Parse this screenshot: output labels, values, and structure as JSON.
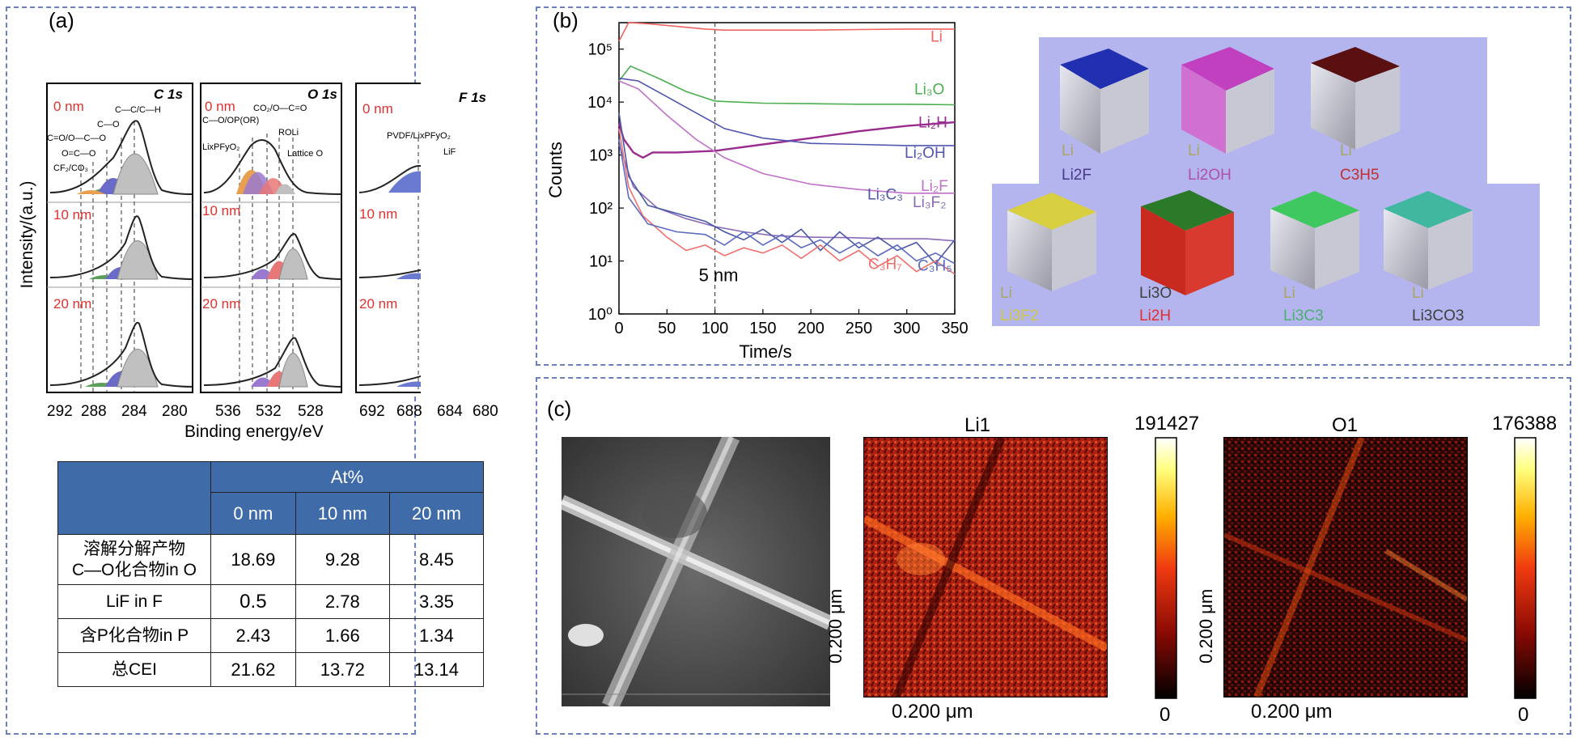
{
  "panel_a": {
    "label": "(a)",
    "y_axis_label": "Intensity/(a.u.)",
    "x_axis_label": "Binding energy/eV",
    "depth_labels": [
      "0 nm",
      "10 nm",
      "20 nm"
    ],
    "c1s": {
      "title": "C 1s",
      "ticks": [
        "292",
        "288",
        "284",
        "280"
      ],
      "annotations": [
        "C—C/C—H",
        "C—O",
        "C=O/O—C—O",
        "O=C—O",
        "CF₂/CO₃"
      ]
    },
    "o1s": {
      "title": "O 1s",
      "ticks": [
        "536",
        "532",
        "528"
      ],
      "annotations": [
        "CO₂/O—C=O",
        "C—O/OP(OR)",
        "ROLi",
        "LixPFyO₂",
        "Lattice O"
      ]
    },
    "f1s": {
      "title": "F 1s",
      "ticks": [
        "692",
        "688",
        "684",
        "680"
      ],
      "annotations": [
        "PVDF/LixPFyO₂",
        "LiF"
      ]
    },
    "table": {
      "header_group": "At%",
      "columns": [
        "0 nm",
        "10 nm",
        "20 nm"
      ],
      "rows": [
        {
          "label_line1": "溶解分解产物",
          "label_line2": "C—O化合物in O",
          "values": [
            "18.69",
            "9.28",
            "8.45"
          ]
        },
        {
          "label_line1": "LiF in F",
          "label_line2": "",
          "values": [
            "0.5",
            "2.78",
            "3.35"
          ]
        },
        {
          "label_line1": "含P化合物in P",
          "label_line2": "",
          "values": [
            "2.43",
            "1.66",
            "1.34"
          ]
        },
        {
          "label_line1": "总CEI",
          "label_line2": "",
          "values": [
            "21.62",
            "13.72",
            "13.14"
          ]
        }
      ]
    }
  },
  "panel_b": {
    "label": "(b)",
    "chart_data": {
      "type": "line",
      "title": "",
      "xlabel": "Time/s",
      "ylabel": "Counts",
      "yscale": "log",
      "xlim": [
        0,
        350
      ],
      "ylim_exponents": [
        0,
        5.5
      ],
      "x_ticks": [
        "0",
        "50",
        "100",
        "150",
        "200",
        "250",
        "300",
        "350"
      ],
      "y_ticks": [
        "10⁰",
        "10¹",
        "10²",
        "10³",
        "10⁴",
        "10⁵"
      ],
      "marker_line": {
        "x": 100,
        "label": "5 nm"
      },
      "series": [
        {
          "name": "Li",
          "color": "#f06464",
          "points": [
            [
              0,
              5.15
            ],
            [
              10,
              5.5
            ],
            [
              30,
              5.48
            ],
            [
              60,
              5.43
            ],
            [
              90,
              5.38
            ],
            [
              110,
              5.36
            ],
            [
              150,
              5.36
            ],
            [
              200,
              5.36
            ],
            [
              250,
              5.37
            ],
            [
              300,
              5.38
            ],
            [
              350,
              5.38
            ]
          ]
        },
        {
          "name": "Li₃O",
          "color": "#4caf50",
          "points": [
            [
              0,
              4.4
            ],
            [
              12,
              4.68
            ],
            [
              40,
              4.46
            ],
            [
              70,
              4.2
            ],
            [
              100,
              4.02
            ],
            [
              150,
              3.98
            ],
            [
              200,
              3.97
            ],
            [
              250,
              3.96
            ],
            [
              300,
              3.96
            ],
            [
              350,
              3.95
            ]
          ]
        },
        {
          "name": "Li₂H",
          "color": "#9b2b8e",
          "points": [
            [
              0,
              3.6
            ],
            [
              5,
              3.3
            ],
            [
              15,
              3.05
            ],
            [
              25,
              2.95
            ],
            [
              35,
              3.05
            ],
            [
              60,
              3.05
            ],
            [
              100,
              3.08
            ],
            [
              150,
              3.2
            ],
            [
              200,
              3.32
            ],
            [
              250,
              3.45
            ],
            [
              300,
              3.55
            ],
            [
              350,
              3.62
            ]
          ]
        },
        {
          "name": "Li₂OH",
          "color": "#5055b0",
          "points": [
            [
              0,
              4.45
            ],
            [
              20,
              4.4
            ],
            [
              50,
              4.1
            ],
            [
              80,
              3.8
            ],
            [
              110,
              3.5
            ],
            [
              150,
              3.32
            ],
            [
              200,
              3.22
            ],
            [
              250,
              3.2
            ],
            [
              300,
              3.18
            ],
            [
              350,
              3.18
            ]
          ]
        },
        {
          "name": "Li₂F",
          "color": "#c070c8",
          "points": [
            [
              0,
              4.4
            ],
            [
              20,
              4.25
            ],
            [
              50,
              3.75
            ],
            [
              80,
              3.3
            ],
            [
              110,
              2.95
            ],
            [
              150,
              2.65
            ],
            [
              200,
              2.45
            ],
            [
              250,
              2.35
            ],
            [
              300,
              2.28
            ],
            [
              350,
              2.28
            ]
          ]
        },
        {
          "name": "Li₃F₂",
          "color": "#8a6ab8",
          "points": [
            [
              0,
              3.2
            ],
            [
              15,
              2.4
            ],
            [
              40,
              2.0
            ],
            [
              70,
              1.8
            ],
            [
              100,
              1.65
            ],
            [
              130,
              1.55
            ],
            [
              160,
              1.48
            ],
            [
              200,
              1.45
            ],
            [
              240,
              1.44
            ],
            [
              280,
              1.42
            ],
            [
              320,
              1.42
            ],
            [
              350,
              1.38
            ]
          ]
        },
        {
          "name": "Li₃C₃",
          "color": "#4a58a8",
          "points": [
            [
              0,
              3.8
            ],
            [
              10,
              2.6
            ],
            [
              30,
              2.05
            ],
            [
              60,
              1.9
            ],
            [
              90,
              1.75
            ],
            [
              110,
              1.55
            ],
            [
              130,
              1.4
            ],
            [
              150,
              1.6
            ],
            [
              170,
              1.35
            ],
            [
              190,
              1.6
            ],
            [
              210,
              1.2
            ],
            [
              230,
              1.55
            ],
            [
              250,
              1.25
            ],
            [
              270,
              1.45
            ],
            [
              290,
              1.2
            ],
            [
              310,
              1.35
            ],
            [
              330,
              0.95
            ],
            [
              350,
              1.4
            ]
          ]
        },
        {
          "name": "C₃H₇",
          "color": "#f07070",
          "points": [
            [
              0,
              3.5
            ],
            [
              10,
              2.4
            ],
            [
              25,
              1.85
            ],
            [
              50,
              1.45
            ],
            [
              70,
              1.2
            ],
            [
              90,
              1.3
            ],
            [
              110,
              1.1
            ],
            [
              130,
              1.25
            ],
            [
              150,
              1.15
            ],
            [
              170,
              1.3
            ],
            [
              190,
              1.05
            ],
            [
              210,
              1.3
            ],
            [
              230,
              1.0
            ],
            [
              250,
              1.2
            ],
            [
              270,
              0.9
            ],
            [
              290,
              1.1
            ],
            [
              310,
              0.8
            ],
            [
              330,
              1.0
            ],
            [
              350,
              0.75
            ]
          ]
        },
        {
          "name": "C₃H₅",
          "color": "#5b6cc0",
          "points": [
            [
              0,
              3.3
            ],
            [
              10,
              2.2
            ],
            [
              30,
              1.7
            ],
            [
              60,
              1.55
            ],
            [
              90,
              1.5
            ],
            [
              110,
              1.3
            ],
            [
              130,
              1.55
            ],
            [
              150,
              1.3
            ],
            [
              170,
              1.5
            ],
            [
              190,
              1.25
            ],
            [
              210,
              1.4
            ],
            [
              230,
              1.15
            ],
            [
              250,
              1.35
            ],
            [
              270,
              1.1
            ],
            [
              290,
              1.3
            ],
            [
              310,
              1.0
            ],
            [
              330,
              1.15
            ],
            [
              350,
              0.95
            ]
          ]
        }
      ]
    },
    "cubes_top": [
      {
        "line1": "Li",
        "line2": "Li2F",
        "line1_color": "#a8a860",
        "line2_color": "#4a3a8a"
      },
      {
        "line1": "Li",
        "line2": "Li2OH",
        "line1_color": "#a8a860",
        "line2_color": "#b050a8"
      },
      {
        "line1": "Li",
        "line2": "C3H5",
        "line1_color": "#a8a860",
        "line2_color": "#c03030"
      }
    ],
    "cubes_bottom": [
      {
        "line1": "Li",
        "line2": "Li3F2",
        "line1_color": "#a8a860",
        "line2_color": "#d0c840"
      },
      {
        "line1": "Li3O",
        "line2": "Li2H",
        "line1_color": "#404040",
        "line2_color": "#e03030"
      },
      {
        "line1": "Li",
        "line2": "Li3C3",
        "line1_color": "#a8a860",
        "line2_color": "#4caf70"
      },
      {
        "line1": "Li",
        "line2": "Li3CO3",
        "line1_color": "#a8a860",
        "line2_color": "#404040"
      }
    ]
  },
  "panel_c": {
    "label": "(c)",
    "map1": {
      "title": "Li1",
      "scale_bar": "0.200 μm",
      "side_scale": "0.200 μm",
      "cmax": "191427",
      "cmin": "0"
    },
    "map2": {
      "title": "O1",
      "scale_bar": "0.200 μm",
      "side_scale": "0.200 μm",
      "cmax": "176388",
      "cmin": "0"
    }
  }
}
